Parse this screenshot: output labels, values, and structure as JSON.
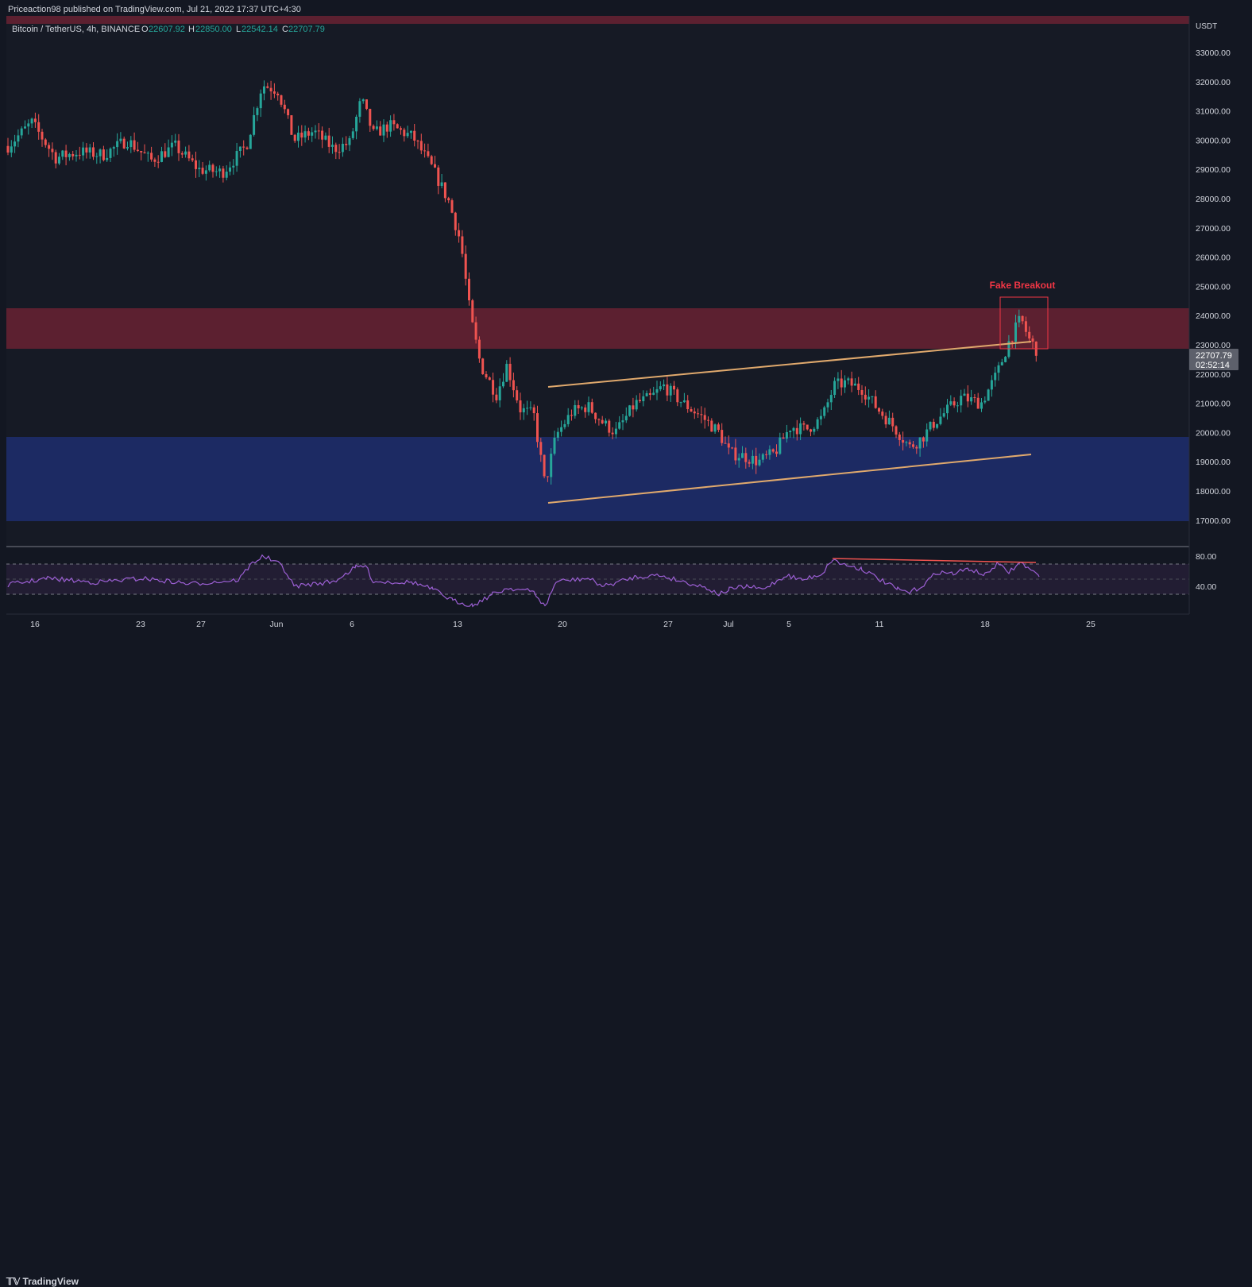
{
  "header": {
    "published": "Priceaction98 published on TradingView.com, Jul 21, 2022 17:37 UTC+4:30"
  },
  "legend": {
    "symbol": "Bitcoin / TetherUS, 4h, BINANCE",
    "o_label": "O",
    "o_value": "22607.92",
    "h_label": "H",
    "h_value": "22850.00",
    "l_label": "L",
    "l_value": "22542.14",
    "c_label": "C",
    "c_value": "22707.79"
  },
  "price_axis": {
    "unit": "USDT",
    "ticks": [
      "33000.00",
      "32000.00",
      "31000.00",
      "30000.00",
      "29000.00",
      "28000.00",
      "27000.00",
      "26000.00",
      "25000.00",
      "24000.00",
      "23000.00",
      "22000.00",
      "21000.00",
      "20000.00",
      "19000.00",
      "18000.00",
      "17000.00"
    ],
    "current_price": "22707.79",
    "countdown": "02:52:14"
  },
  "rsi_axis": {
    "ticks": [
      "80.00",
      "40.00"
    ]
  },
  "time_axis": {
    "ticks": [
      "16",
      "23",
      "27",
      "Jun",
      "6",
      "13",
      "20",
      "27",
      "Jul",
      "5",
      "11",
      "18",
      "25"
    ]
  },
  "annotation": {
    "label": "Fake Breakout"
  },
  "colors": {
    "up": "#26a69a",
    "down": "#ef5350",
    "bg": "#131722",
    "resistance": "#5c2030",
    "support": "#1c2a63",
    "trendline": "#e0a96d",
    "rsi": "#9c5fd4",
    "fake_breakout": "#f23645"
  },
  "brand": {
    "name": "TradingView"
  },
  "chart_data": {
    "type": "candlestick",
    "timeframe": "4h",
    "ylim": [
      17000,
      33000
    ],
    "x_ticks": [
      "16",
      "23",
      "27",
      "Jun",
      "6",
      "13",
      "20",
      "27",
      "Jul",
      "5",
      "11",
      "18",
      "25"
    ],
    "price_path": [
      [
        "May 16",
        29800
      ],
      [
        "May 18",
        30600
      ],
      [
        "May 20",
        29200
      ],
      [
        "May 22",
        29600
      ],
      [
        "May 24",
        29500
      ],
      [
        "May 26",
        29000
      ],
      [
        "May 28",
        29000
      ],
      [
        "May 30",
        29800
      ],
      [
        "May 31",
        31900
      ],
      [
        "Jun 1",
        31700
      ],
      [
        "Jun 2",
        30000
      ],
      [
        "Jun 3",
        30300
      ],
      [
        "Jun 5",
        29700
      ],
      [
        "Jun 6",
        29900
      ],
      [
        "Jun 7",
        31400
      ],
      [
        "Jun 8",
        30200
      ],
      [
        "Jun 9",
        30500
      ],
      [
        "Jun 10",
        30100
      ],
      [
        "Jun 11",
        29000
      ],
      [
        "Jun 12",
        27900
      ],
      [
        "Jun 13",
        26500
      ],
      [
        "Jun 13",
        24000
      ],
      [
        "Jun 14",
        22300
      ],
      [
        "Jun 15",
        21300
      ],
      [
        "Jun 16",
        22300
      ],
      [
        "Jun 17",
        20800
      ],
      [
        "Jun 18",
        20600
      ],
      [
        "Jun 18",
        18200
      ],
      [
        "Jun 19",
        19900
      ],
      [
        "Jun 20",
        20700
      ],
      [
        "Jun 21",
        20900
      ],
      [
        "Jun 22",
        20300
      ],
      [
        "Jun 23",
        20000
      ],
      [
        "Jun 24",
        21000
      ],
      [
        "Jun 25",
        21200
      ],
      [
        "Jun 26",
        21600
      ],
      [
        "Jun 27",
        21000
      ],
      [
        "Jun 28",
        20500
      ],
      [
        "Jun 29",
        20000
      ],
      [
        "Jun 30",
        19300
      ],
      [
        "Jul 1",
        19200
      ],
      [
        "Jul 2",
        19000
      ],
      [
        "Jul 3",
        19300
      ],
      [
        "Jul 4",
        20200
      ],
      [
        "Jul 5",
        20100
      ],
      [
        "Jul 6",
        20500
      ],
      [
        "Jul 7",
        21600
      ],
      [
        "Jul 8",
        21700
      ],
      [
        "Jul 9",
        21500
      ],
      [
        "Jul 10",
        20800
      ],
      [
        "Jul 11",
        20200
      ],
      [
        "Jul 12",
        19500
      ],
      [
        "Jul 13",
        19800
      ],
      [
        "Jul 14",
        20300
      ],
      [
        "Jul 15",
        20700
      ],
      [
        "Jul 16",
        21200
      ],
      [
        "Jul 17",
        21000
      ],
      [
        "Jul 18",
        22000
      ],
      [
        "Jul 19",
        23100
      ],
      [
        "Jul 20",
        23900
      ],
      [
        "Jul 20",
        23200
      ],
      [
        "Jul 21",
        22700
      ]
    ],
    "last": {
      "open": 22607.92,
      "high": 22850.0,
      "low": 22542.14,
      "close": 22707.79
    },
    "zones": [
      {
        "name": "resistance",
        "from": 22900,
        "to": 24300
      },
      {
        "name": "support",
        "from": 17000,
        "to": 19900
      }
    ],
    "channel": {
      "upper": [
        [
          "Jun 19",
          21600
        ],
        [
          "Jul 20",
          23100
        ]
      ],
      "lower": [
        [
          "Jun 19",
          17600
        ],
        [
          "Jul 21",
          19200
        ]
      ]
    },
    "rsi": {
      "ylim": [
        25,
        90
      ],
      "levels": [
        70,
        50,
        30
      ],
      "ticks": [
        80,
        40
      ],
      "divergence": [
        [
          "Jul 8",
          78
        ],
        [
          "Jul 21",
          76
        ]
      ]
    }
  }
}
